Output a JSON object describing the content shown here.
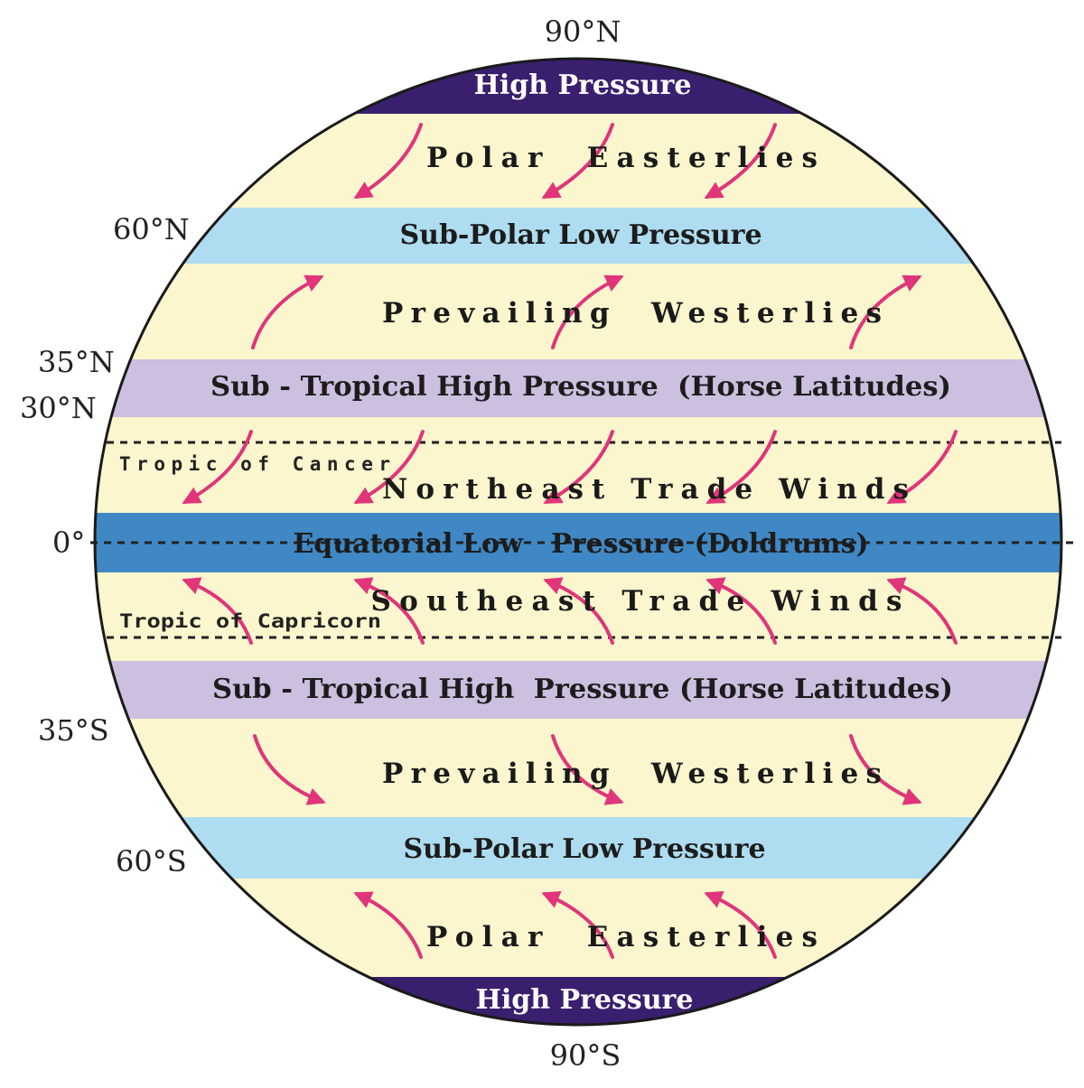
{
  "colors": {
    "background": "#fbf6cd",
    "high_pressure": "#3a1f6e",
    "sub_polar_low": "#aedcf0",
    "sub_tropical_high": "#cdbfe0",
    "equatorial_low": "#3f88c5",
    "arrow": "#e0357a",
    "outline": "#1a1a1a"
  },
  "poles": {
    "north": "90°N",
    "south": "90°S"
  },
  "latitudes": {
    "n60": "60°N",
    "n35": "35°N",
    "n30": "30°N",
    "equator": "0°",
    "s35": "35°S",
    "s60": "60°S"
  },
  "tropics": {
    "cancer": "Tropic of Cancer",
    "capricorn": "Tropic of Capricorn"
  },
  "bands": {
    "high_pressure_north": "High Pressure",
    "sub_polar_low_north": "Sub-Polar Low Pressure",
    "sub_tropical_high_north": "Sub - Tropical High Pressure  (Horse Latitudes)",
    "equatorial_low": "Equatorial Low   Pressure (Doldrums)",
    "sub_tropical_high_south": "Sub - Tropical High  Pressure (Horse Latitudes)",
    "sub_polar_low_south": "Sub-Polar Low Pressure",
    "high_pressure_south": "High Pressure"
  },
  "winds": {
    "polar_easterlies_north": "Polar  Easterlies",
    "westerlies_north": "Prevailing  Westerlies",
    "ne_trade": "Northeast Trade Winds",
    "se_trade": "Southeast Trade Winds",
    "westerlies_south": "Prevailing  Westerlies",
    "polar_easterlies_south": "Polar  Easterlies"
  }
}
